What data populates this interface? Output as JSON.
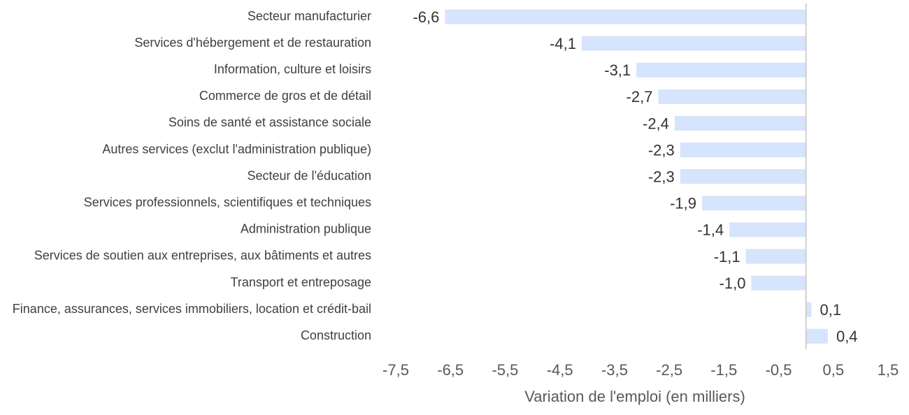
{
  "chart_data": {
    "type": "bar",
    "orientation": "horizontal",
    "categories": [
      "Secteur manufacturier",
      "Services d'hébergement et de restauration",
      "Information, culture et loisirs",
      "Commerce de gros et de détail",
      "Soins de santé et assistance sociale",
      "Autres services (exclut l'administration publique)",
      "Secteur de l'éducation",
      "Services professionnels, scientifiques et techniques",
      "Administration publique",
      "Services de soutien aux entreprises, aux bâtiments et autres",
      "Transport et entreposage",
      "Finance, assurances, services immobiliers, location et crédit-bail",
      "Construction"
    ],
    "values": [
      -6.6,
      -4.1,
      -3.1,
      -2.7,
      -2.4,
      -2.3,
      -2.3,
      -1.9,
      -1.4,
      -1.1,
      -1.0,
      0.1,
      0.4
    ],
    "data_labels": [
      "-6,6",
      "-4,1",
      "-3,1",
      "-2,7",
      "-2,4",
      "-2,3",
      "-2,3",
      "-1,9",
      "-1,4",
      "-1,1",
      "-1,0",
      "0,1",
      "0,4"
    ],
    "xlabel": "Variation de l'emploi (en milliers)",
    "xlim": [
      -7.5,
      1.5
    ],
    "xticks": [
      -7.5,
      -6.5,
      -5.5,
      -4.5,
      -3.5,
      -2.5,
      -1.5,
      -0.5,
      0.5,
      1.5
    ],
    "xtick_labels": [
      "-7,5",
      "-6,5",
      "-5,5",
      "-4,5",
      "-3,5",
      "-2,5",
      "-1,5",
      "-0,5",
      "0,5",
      "1,5"
    ],
    "grid": false,
    "legend": "none",
    "bar_color": "#d6e4fd",
    "axis_color": "#cfcfcf"
  }
}
